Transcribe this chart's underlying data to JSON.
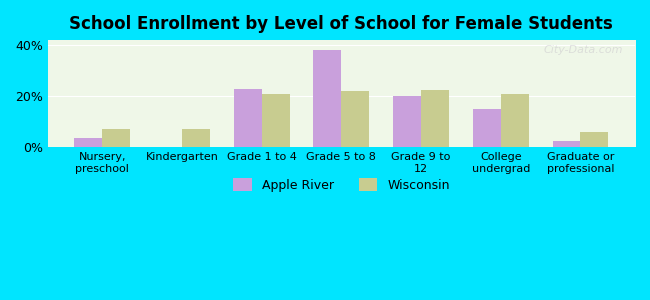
{
  "title": "School Enrollment by Level of School for Female Students",
  "categories": [
    "Nursery,\npreschool",
    "Kindergarten",
    "Grade 1 to 4",
    "Grade 5 to 8",
    "Grade 9 to\n12",
    "College\nundergrad",
    "Graduate or\nprofessional"
  ],
  "apple_river": [
    3.5,
    0,
    23,
    38,
    20,
    15,
    2.5
  ],
  "wisconsin": [
    7,
    7,
    21,
    22,
    22.5,
    21,
    6
  ],
  "apple_river_color": "#c9a0dc",
  "wisconsin_color": "#c8cc90",
  "background_outer": "#00e5ff",
  "background_inner_top": "#e8f5e9",
  "background_inner_bottom": "#f0f8e8",
  "ylim": [
    0,
    42
  ],
  "yticks": [
    0,
    20,
    40
  ],
  "ytick_labels": [
    "0%",
    "20%",
    "40%"
  ],
  "bar_width": 0.35,
  "legend_apple": "Apple River",
  "legend_wisconsin": "Wisconsin",
  "watermark": "City-Data.com"
}
